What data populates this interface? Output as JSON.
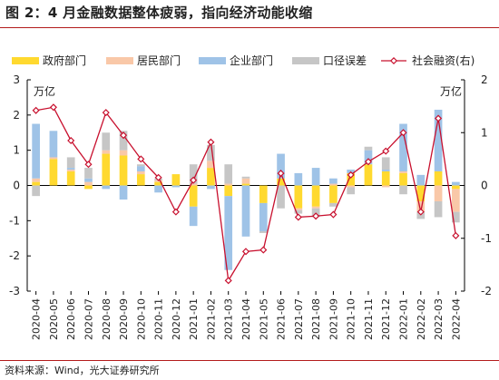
{
  "figure": {
    "title": "图 2：4 月金融数据整体疲弱，指向经济动能收缩",
    "source": "资料来源：Wind，光大证券研究所"
  },
  "chart_data": {
    "type": "bar",
    "stacked": true,
    "left_unit": "万亿",
    "right_unit": "万亿",
    "categories": [
      "2020-04",
      "2020-05",
      "2020-06",
      "2020-07",
      "2020-08",
      "2020-09",
      "2020-10",
      "2020-11",
      "2020-12",
      "2021-01",
      "2021-02",
      "2021-03",
      "2021-04",
      "2021-05",
      "2021-06",
      "2021-07",
      "2021-08",
      "2021-09",
      "2021-10",
      "2021-11",
      "2021-12",
      "2022-01",
      "2022-02",
      "2022-03",
      "2022-04"
    ],
    "left_axis": {
      "min": -3,
      "max": 3,
      "ticks": [
        -3,
        -2,
        -1,
        0,
        1,
        2,
        3
      ]
    },
    "right_axis": {
      "min": -2,
      "max": 2,
      "ticks": [
        -2,
        -1,
        0,
        1,
        2
      ]
    },
    "legend_position": "top",
    "series": [
      {
        "name": "政府部门",
        "color": "#ffd92f",
        "kind": "bar",
        "values": [
          0.1,
          0.75,
          0.4,
          -0.1,
          0.9,
          0.85,
          0.32,
          0.1,
          0.32,
          -0.6,
          0.5,
          -0.3,
          0.05,
          -0.5,
          0.2,
          -0.65,
          -0.6,
          -0.5,
          0.35,
          0.6,
          0.4,
          0.35,
          -0.45,
          0.4,
          -0.1
        ]
      },
      {
        "name": "居民部门",
        "color": "#f9c8a8",
        "kind": "bar",
        "values": [
          0.1,
          0.05,
          0.05,
          0.1,
          0.1,
          0.15,
          0.08,
          0.05,
          0.0,
          0.05,
          0.2,
          0.05,
          0.15,
          0.0,
          0.0,
          -0.05,
          -0.05,
          0.05,
          -0.05,
          0.0,
          -0.05,
          0.05,
          -0.3,
          -0.45,
          -0.65
        ]
      },
      {
        "name": "企业部门",
        "color": "#9fc3e7",
        "kind": "bar",
        "values": [
          1.55,
          0.75,
          0.05,
          0.1,
          -0.1,
          -0.4,
          0.15,
          -0.2,
          -0.05,
          -0.55,
          -0.1,
          -2.1,
          -1.45,
          -0.8,
          0.7,
          0.35,
          0.5,
          0.15,
          0.1,
          0.4,
          0.05,
          1.35,
          0.3,
          1.75,
          0.1
        ]
      },
      {
        "name": "口径误差",
        "color": "#c6c6c6",
        "kind": "bar",
        "values": [
          -0.3,
          0.0,
          0.3,
          0.3,
          0.5,
          0.55,
          0.05,
          0.05,
          0.0,
          0.55,
          0.45,
          0.55,
          0.05,
          -0.05,
          -0.65,
          -0.1,
          -0.25,
          -0.1,
          -0.2,
          0.1,
          0.35,
          -0.25,
          -0.2,
          -0.45,
          -0.3
        ]
      },
      {
        "name": "社会融资(右)",
        "color": "#c8102e",
        "kind": "line",
        "axis": "right",
        "values": [
          1.42,
          1.48,
          0.85,
          0.4,
          1.38,
          0.95,
          0.5,
          0.15,
          -0.5,
          0.1,
          0.82,
          -1.8,
          -1.25,
          -1.22,
          0.23,
          -0.6,
          -0.58,
          -0.55,
          0.2,
          0.45,
          0.65,
          1.0,
          -0.5,
          1.27,
          -0.95
        ]
      }
    ]
  }
}
